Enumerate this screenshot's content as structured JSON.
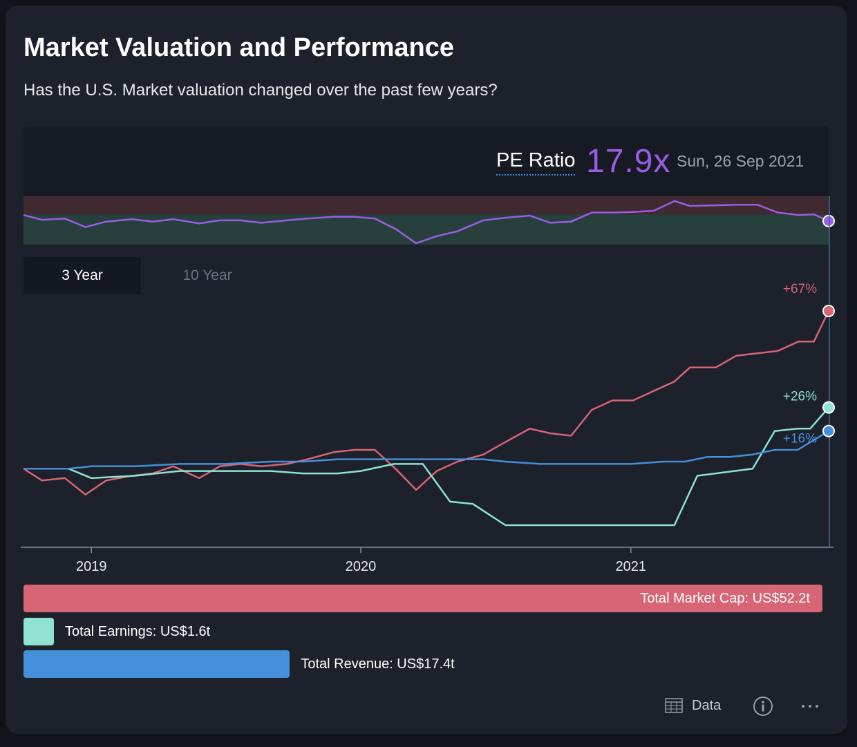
{
  "header": {
    "title": "Market Valuation and Performance",
    "subtitle": "Has the U.S. Market valuation changed over the past few years?"
  },
  "pe": {
    "label": "PE Ratio",
    "value": "17.9x",
    "date": "Sun, 26 Sep 2021"
  },
  "tabs": [
    {
      "label": "3 Year",
      "active": true
    },
    {
      "label": "10 Year",
      "active": false
    }
  ],
  "bars": [
    {
      "label": "Total Market Cap: US$52.2t",
      "value": 52.2,
      "color": "#d86575"
    },
    {
      "label": "Total Earnings: US$1.6t",
      "value": 1.6,
      "color": "#8ee3d2"
    },
    {
      "label": "Total Revenue: US$17.4t",
      "value": 17.4,
      "color": "#4590d9"
    }
  ],
  "footer": {
    "data_label": "Data",
    "icons": [
      "table-icon",
      "info-icon",
      "more-icon"
    ]
  },
  "colors": {
    "pe": "#9b5de5",
    "market_cap": "#d86575",
    "earnings": "#8ee3d2",
    "revenue": "#4590d9"
  },
  "chart_data": [
    {
      "type": "line",
      "title": "PE Ratio",
      "x": [
        "2018-10-01",
        "2018-10-26",
        "2018-11-26",
        "2018-12-24",
        "2019-01-21",
        "2019-02-25",
        "2019-03-25",
        "2019-04-22",
        "2019-05-27",
        "2019-06-24",
        "2019-07-22",
        "2019-08-19",
        "2019-09-23",
        "2019-10-21",
        "2019-11-25",
        "2019-12-23",
        "2020-01-20",
        "2020-02-17",
        "2020-03-16",
        "2020-04-13",
        "2020-05-11",
        "2020-06-15",
        "2020-07-13",
        "2020-08-17",
        "2020-09-14",
        "2020-10-12",
        "2020-11-09",
        "2020-12-07",
        "2021-01-04",
        "2021-02-01",
        "2021-03-01",
        "2021-03-22",
        "2021-04-26",
        "2021-05-24",
        "2021-06-21",
        "2021-07-19",
        "2021-08-16",
        "2021-09-06",
        "2021-09-26"
      ],
      "series": [
        {
          "name": "PE Ratio",
          "values": [
            18.9,
            18.1,
            18.3,
            16.9,
            17.8,
            18.2,
            17.8,
            18.2,
            17.5,
            18.0,
            18.0,
            17.6,
            18.0,
            18.3,
            18.6,
            18.6,
            18.3,
            16.6,
            14.2,
            15.4,
            16.2,
            18.0,
            18.4,
            18.8,
            17.6,
            17.8,
            19.3,
            19.3,
            19.4,
            19.6,
            21.2,
            20.4,
            20.5,
            20.6,
            20.6,
            19.3,
            18.9,
            19.0,
            17.9
          ]
        }
      ],
      "bands": [
        {
          "name": "above average",
          "color": "#40292f",
          "from": 19.0,
          "to": 22.0
        },
        {
          "name": "below average",
          "color": "#28403d",
          "from": 14.0,
          "to": 19.0
        }
      ],
      "ylim": [
        13.3,
        22.0
      ],
      "current_value": 17.9
    },
    {
      "type": "line",
      "x_tick_labels": [
        "2019",
        "2020",
        "2021"
      ],
      "x_ticks": [
        "2019-01-01",
        "2020-01-01",
        "2021-01-01"
      ],
      "series": [
        {
          "name": "Total Market Cap",
          "end_label": "+67%",
          "color": "#d86575",
          "x": [
            "2018-10-01",
            "2018-10-26",
            "2018-11-26",
            "2018-12-24",
            "2019-01-21",
            "2019-02-25",
            "2019-03-25",
            "2019-04-22",
            "2019-05-27",
            "2019-06-24",
            "2019-07-22",
            "2019-08-19",
            "2019-09-23",
            "2019-10-21",
            "2019-11-25",
            "2019-12-23",
            "2020-01-20",
            "2020-02-17",
            "2020-03-16",
            "2020-04-13",
            "2020-05-11",
            "2020-06-15",
            "2020-07-13",
            "2020-08-17",
            "2020-09-14",
            "2020-10-12",
            "2020-11-09",
            "2020-12-07",
            "2021-01-04",
            "2021-02-01",
            "2021-03-01",
            "2021-03-22",
            "2021-04-26",
            "2021-05-24",
            "2021-06-21",
            "2021-07-19",
            "2021-08-16",
            "2021-09-06",
            "2021-09-26"
          ],
          "values": [
            0,
            -5,
            -4,
            -11,
            -5,
            -3,
            -2,
            1,
            -4,
            1,
            2,
            1,
            2,
            4,
            7,
            8,
            8,
            0,
            -9,
            -1,
            3,
            6,
            11,
            17,
            15,
            14,
            25,
            29,
            29,
            33,
            37,
            43,
            43,
            48,
            49,
            50,
            54,
            54,
            67
          ]
        },
        {
          "name": "Total Earnings",
          "end_label": "+26%",
          "color": "#8ee3d2",
          "x": [
            "2018-10-01",
            "2018-12-01",
            "2019-01-01",
            "2019-03-01",
            "2019-05-01",
            "2019-07-01",
            "2019-09-01",
            "2019-10-15",
            "2019-12-01",
            "2020-01-01",
            "2020-02-15",
            "2020-03-25",
            "2020-05-01",
            "2020-06-01",
            "2020-07-15",
            "2020-09-01",
            "2020-10-15",
            "2020-12-01",
            "2021-01-15",
            "2021-03-01",
            "2021-04-01",
            "2021-06-15",
            "2021-07-15",
            "2021-08-15",
            "2021-09-01",
            "2021-09-26"
          ],
          "values": [
            0,
            0,
            -4,
            -3,
            -1,
            -1,
            -1,
            -2,
            -2,
            -1,
            2,
            2,
            -14,
            -15,
            -24,
            -24,
            -24,
            -24,
            -24,
            -24,
            -3,
            0,
            16,
            17,
            17,
            26
          ]
        },
        {
          "name": "Total Revenue",
          "end_label": "+16%",
          "color": "#4590d9",
          "x": [
            "2018-10-01",
            "2018-12-01",
            "2019-01-01",
            "2019-03-01",
            "2019-05-01",
            "2019-07-01",
            "2019-09-01",
            "2019-10-15",
            "2019-12-01",
            "2020-01-01",
            "2020-02-15",
            "2020-04-01",
            "2020-05-15",
            "2020-06-15",
            "2020-07-15",
            "2020-09-01",
            "2020-10-15",
            "2020-11-15",
            "2021-01-01",
            "2021-02-15",
            "2021-03-15",
            "2021-04-15",
            "2021-05-15",
            "2021-06-15",
            "2021-07-15",
            "2021-08-15",
            "2021-09-26"
          ],
          "values": [
            0,
            0,
            1,
            1,
            2,
            2,
            3,
            3,
            4,
            4,
            4,
            4,
            4,
            4,
            3,
            2,
            2,
            2,
            2,
            3,
            3,
            5,
            5,
            6,
            8,
            8,
            16
          ]
        }
      ]
    }
  ]
}
